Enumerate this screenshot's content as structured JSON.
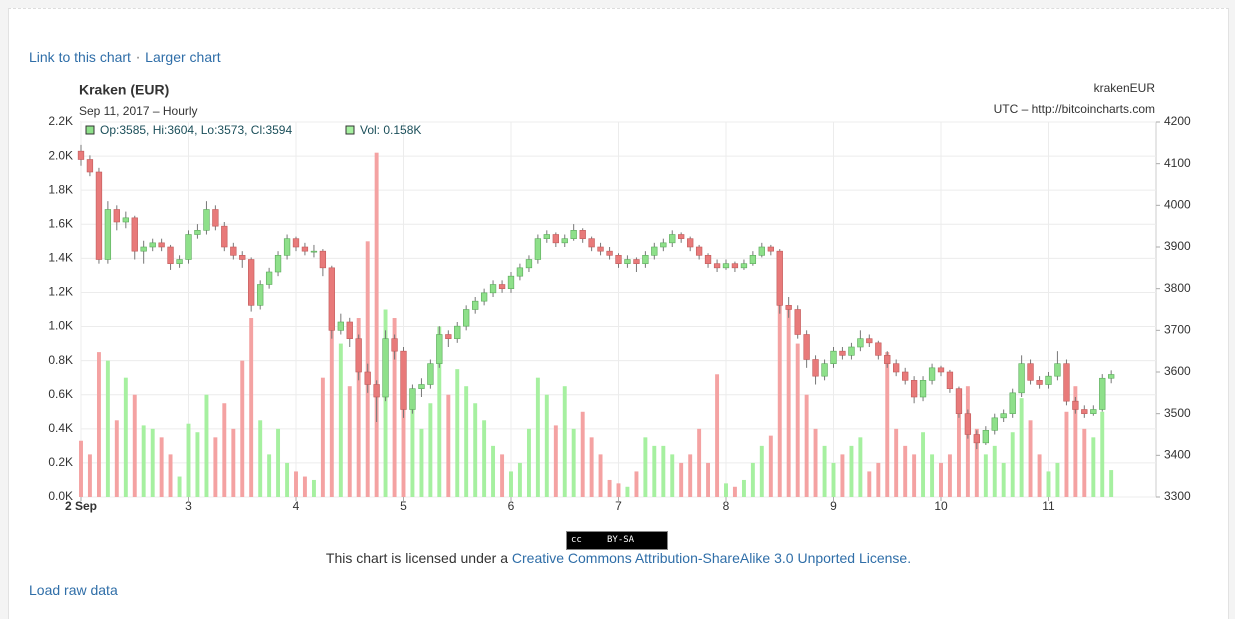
{
  "links": [
    "Link to this chart",
    "Larger chart"
  ],
  "separator": "·",
  "badge": {
    "cc": "cc",
    "text": "BY-SA"
  },
  "license": {
    "prefix": "This chart is licensed under a ",
    "link": "Creative Commons Attribution-ShareAlike 3.0 Unported License",
    "suffix": "."
  },
  "raw_data_link": "Load raw data",
  "chart_data": {
    "type": "candlestick",
    "title": "Kraken (EUR)",
    "subtitle": "Sep 11, 2017 – Hourly",
    "symbol": "krakenEUR",
    "source": "UTC – http://bitcoincharts.com",
    "info": "Op:3585, Hi:3604, Lo:3573, Cl:3594",
    "volume_info": "Vol: 0.158K",
    "x": [
      2,
      2.083,
      2.167,
      2.25,
      2.333,
      2.417,
      2.5,
      2.583,
      2.667,
      2.75,
      2.833,
      2.917,
      3,
      3.083,
      3.167,
      3.25,
      3.333,
      3.417,
      3.5,
      3.583,
      3.667,
      3.75,
      3.833,
      3.917,
      4,
      4.083,
      4.167,
      4.25,
      4.333,
      4.417,
      4.5,
      4.583,
      4.667,
      4.75,
      4.833,
      4.917,
      5,
      5.083,
      5.167,
      5.25,
      5.333,
      5.417,
      5.5,
      5.583,
      5.667,
      5.75,
      5.833,
      5.917,
      6,
      6.083,
      6.167,
      6.25,
      6.333,
      6.417,
      6.5,
      6.583,
      6.667,
      6.75,
      6.833,
      6.917,
      7,
      7.083,
      7.167,
      7.25,
      7.333,
      7.417,
      7.5,
      7.583,
      7.667,
      7.75,
      7.833,
      7.917,
      8,
      8.083,
      8.167,
      8.25,
      8.333,
      8.417,
      8.5,
      8.583,
      8.667,
      8.75,
      8.833,
      8.917,
      9,
      9.083,
      9.167,
      9.25,
      9.333,
      9.417,
      9.5,
      9.583,
      9.667,
      9.75,
      9.833,
      9.917,
      10,
      10.083,
      10.167,
      10.25,
      10.333,
      10.417,
      10.5,
      10.583,
      10.667,
      10.75,
      10.833,
      10.917,
      11,
      11.083,
      11.167,
      11.25,
      11.333,
      11.417,
      11.5,
      11.583
    ],
    "xlim": [
      2,
      12
    ],
    "xticks": [
      {
        "value": 2,
        "label": "2 Sep"
      },
      3,
      4,
      5,
      6,
      7,
      8,
      9,
      10,
      11
    ],
    "ylim": [
      3300,
      4200
    ],
    "yticks": [
      3300,
      3400,
      3500,
      3600,
      3700,
      3800,
      3900,
      4000,
      4100,
      4200
    ],
    "y2lim": [
      0,
      2200
    ],
    "y2ticks": [
      {
        "value": 0,
        "label": "0.0K"
      },
      {
        "value": 200,
        "label": "0.2K"
      },
      {
        "value": 400,
        "label": "0.4K"
      },
      {
        "value": 600,
        "label": "0.6K"
      },
      {
        "value": 800,
        "label": "0.8K"
      },
      {
        "value": 1000,
        "label": "1.0K"
      },
      {
        "value": 1200,
        "label": "1.2K"
      },
      {
        "value": 1400,
        "label": "1.4K"
      },
      {
        "value": 1600,
        "label": "1.6K"
      },
      {
        "value": 1800,
        "label": "1.8K"
      },
      {
        "value": 2000,
        "label": "2.0K"
      },
      {
        "value": 2200,
        "label": "2.2K"
      }
    ],
    "grid": true,
    "series": [
      {
        "type": "candlestick",
        "up_color": "#8ee08a",
        "down_color": "#e87a7a",
        "values": [
          [
            4130,
            4145,
            4095,
            4110
          ],
          [
            4110,
            4120,
            4070,
            4080
          ],
          [
            4080,
            4090,
            3860,
            3870
          ],
          [
            3870,
            4010,
            3860,
            3990
          ],
          [
            3990,
            4000,
            3940,
            3960
          ],
          [
            3960,
            3985,
            3945,
            3970
          ],
          [
            3970,
            3975,
            3870,
            3890
          ],
          [
            3890,
            3915,
            3860,
            3900
          ],
          [
            3900,
            3920,
            3890,
            3910
          ],
          [
            3910,
            3920,
            3890,
            3900
          ],
          [
            3900,
            3905,
            3845,
            3860
          ],
          [
            3860,
            3880,
            3850,
            3870
          ],
          [
            3870,
            3940,
            3860,
            3930
          ],
          [
            3930,
            3955,
            3920,
            3940
          ],
          [
            3940,
            4010,
            3930,
            3990
          ],
          [
            3990,
            4000,
            3940,
            3950
          ],
          [
            3950,
            3960,
            3890,
            3900
          ],
          [
            3900,
            3910,
            3870,
            3880
          ],
          [
            3880,
            3890,
            3850,
            3870
          ],
          [
            3870,
            3875,
            3745,
            3760
          ],
          [
            3760,
            3820,
            3750,
            3810
          ],
          [
            3810,
            3850,
            3800,
            3840
          ],
          [
            3840,
            3890,
            3830,
            3880
          ],
          [
            3880,
            3930,
            3870,
            3920
          ],
          [
            3920,
            3925,
            3890,
            3900
          ],
          [
            3900,
            3910,
            3880,
            3890
          ],
          [
            3890,
            3905,
            3875,
            3890
          ],
          [
            3890,
            3895,
            3830,
            3850
          ],
          [
            3850,
            3855,
            3680,
            3700
          ],
          [
            3700,
            3740,
            3690,
            3720
          ],
          [
            3720,
            3730,
            3660,
            3680
          ],
          [
            3680,
            3690,
            3580,
            3600
          ],
          [
            3600,
            3620,
            3550,
            3570
          ],
          [
            3570,
            3580,
            3480,
            3540
          ],
          [
            3540,
            3700,
            3530,
            3680
          ],
          [
            3680,
            3690,
            3630,
            3650
          ],
          [
            3650,
            3660,
            3490,
            3510
          ],
          [
            3510,
            3570,
            3500,
            3560
          ],
          [
            3560,
            3585,
            3540,
            3570
          ],
          [
            3570,
            3630,
            3560,
            3620
          ],
          [
            3620,
            3710,
            3610,
            3690
          ],
          [
            3690,
            3700,
            3660,
            3680
          ],
          [
            3680,
            3720,
            3670,
            3710
          ],
          [
            3710,
            3760,
            3700,
            3750
          ],
          [
            3750,
            3780,
            3740,
            3770
          ],
          [
            3770,
            3800,
            3760,
            3790
          ],
          [
            3790,
            3820,
            3780,
            3810
          ],
          [
            3810,
            3820,
            3790,
            3800
          ],
          [
            3800,
            3840,
            3790,
            3830
          ],
          [
            3830,
            3860,
            3820,
            3850
          ],
          [
            3850,
            3880,
            3840,
            3870
          ],
          [
            3870,
            3930,
            3860,
            3920
          ],
          [
            3920,
            3940,
            3910,
            3930
          ],
          [
            3930,
            3935,
            3900,
            3910
          ],
          [
            3910,
            3930,
            3900,
            3920
          ],
          [
            3920,
            3955,
            3915,
            3940
          ],
          [
            3940,
            3945,
            3910,
            3920
          ],
          [
            3920,
            3925,
            3890,
            3900
          ],
          [
            3900,
            3910,
            3880,
            3890
          ],
          [
            3890,
            3900,
            3870,
            3880
          ],
          [
            3880,
            3885,
            3850,
            3860
          ],
          [
            3860,
            3880,
            3850,
            3870
          ],
          [
            3870,
            3875,
            3840,
            3860
          ],
          [
            3860,
            3890,
            3850,
            3880
          ],
          [
            3880,
            3910,
            3870,
            3900
          ],
          [
            3900,
            3920,
            3890,
            3910
          ],
          [
            3910,
            3940,
            3900,
            3930
          ],
          [
            3930,
            3935,
            3910,
            3920
          ],
          [
            3920,
            3925,
            3890,
            3900
          ],
          [
            3900,
            3905,
            3870,
            3880
          ],
          [
            3880,
            3885,
            3850,
            3860
          ],
          [
            3860,
            3870,
            3840,
            3850
          ],
          [
            3850,
            3870,
            3845,
            3860
          ],
          [
            3860,
            3865,
            3840,
            3850
          ],
          [
            3850,
            3870,
            3845,
            3860
          ],
          [
            3860,
            3890,
            3855,
            3880
          ],
          [
            3880,
            3910,
            3875,
            3900
          ],
          [
            3900,
            3905,
            3880,
            3890
          ],
          [
            3890,
            3895,
            3740,
            3760
          ],
          [
            3760,
            3780,
            3730,
            3750
          ],
          [
            3750,
            3760,
            3680,
            3690
          ],
          [
            3690,
            3700,
            3610,
            3630
          ],
          [
            3630,
            3640,
            3570,
            3590
          ],
          [
            3590,
            3630,
            3580,
            3620
          ],
          [
            3620,
            3660,
            3610,
            3650
          ],
          [
            3650,
            3660,
            3630,
            3640
          ],
          [
            3640,
            3670,
            3630,
            3660
          ],
          [
            3660,
            3700,
            3650,
            3680
          ],
          [
            3680,
            3690,
            3660,
            3670
          ],
          [
            3670,
            3675,
            3630,
            3640
          ],
          [
            3640,
            3650,
            3610,
            3620
          ],
          [
            3620,
            3630,
            3590,
            3600
          ],
          [
            3600,
            3610,
            3570,
            3580
          ],
          [
            3580,
            3590,
            3525,
            3540
          ],
          [
            3540,
            3590,
            3530,
            3580
          ],
          [
            3580,
            3620,
            3570,
            3610
          ],
          [
            3610,
            3615,
            3590,
            3600
          ],
          [
            3600,
            3605,
            3550,
            3560
          ],
          [
            3560,
            3565,
            3490,
            3500
          ],
          [
            3500,
            3510,
            3440,
            3450
          ],
          [
            3450,
            3460,
            3415,
            3430
          ],
          [
            3430,
            3470,
            3425,
            3460
          ],
          [
            3460,
            3500,
            3450,
            3490
          ],
          [
            3490,
            3510,
            3480,
            3500
          ],
          [
            3500,
            3560,
            3490,
            3550
          ],
          [
            3550,
            3640,
            3540,
            3620
          ],
          [
            3620,
            3630,
            3570,
            3580
          ],
          [
            3580,
            3590,
            3560,
            3570
          ],
          [
            3570,
            3600,
            3560,
            3590
          ],
          [
            3590,
            3650,
            3580,
            3620
          ],
          [
            3620,
            3630,
            3520,
            3530
          ],
          [
            3530,
            3540,
            3500,
            3510
          ],
          [
            3510,
            3520,
            3490,
            3500
          ],
          [
            3500,
            3520,
            3495,
            3510
          ],
          [
            3510,
            3595,
            3505,
            3585
          ],
          [
            3585,
            3604,
            3573,
            3594
          ]
        ]
      },
      {
        "type": "bar",
        "axis": "y2",
        "up_color": "#a6f0a0",
        "down_color": "#f4a2a2",
        "values": [
          330,
          250,
          850,
          800,
          450,
          700,
          600,
          420,
          400,
          350,
          250,
          120,
          430,
          380,
          600,
          350,
          550,
          400,
          800,
          1050,
          450,
          250,
          400,
          200,
          150,
          120,
          100,
          700,
          1100,
          900,
          650,
          1050,
          1500,
          2020,
          1100,
          1050,
          800,
          600,
          400,
          550,
          1000,
          600,
          750,
          650,
          550,
          450,
          300,
          250,
          150,
          200,
          400,
          700,
          600,
          420,
          650,
          400,
          500,
          350,
          250,
          100,
          80,
          60,
          150,
          350,
          300,
          300,
          250,
          200,
          250,
          400,
          200,
          720,
          80,
          60,
          100,
          200,
          300,
          360,
          1350,
          1100,
          900,
          600,
          400,
          300,
          200,
          250,
          300,
          350,
          150,
          200,
          850,
          400,
          300,
          250,
          380,
          250,
          200,
          250,
          500,
          650,
          400,
          250,
          300,
          200,
          380,
          580,
          450,
          250,
          150,
          200,
          500,
          650,
          400,
          350,
          500,
          158
        ]
      }
    ]
  }
}
